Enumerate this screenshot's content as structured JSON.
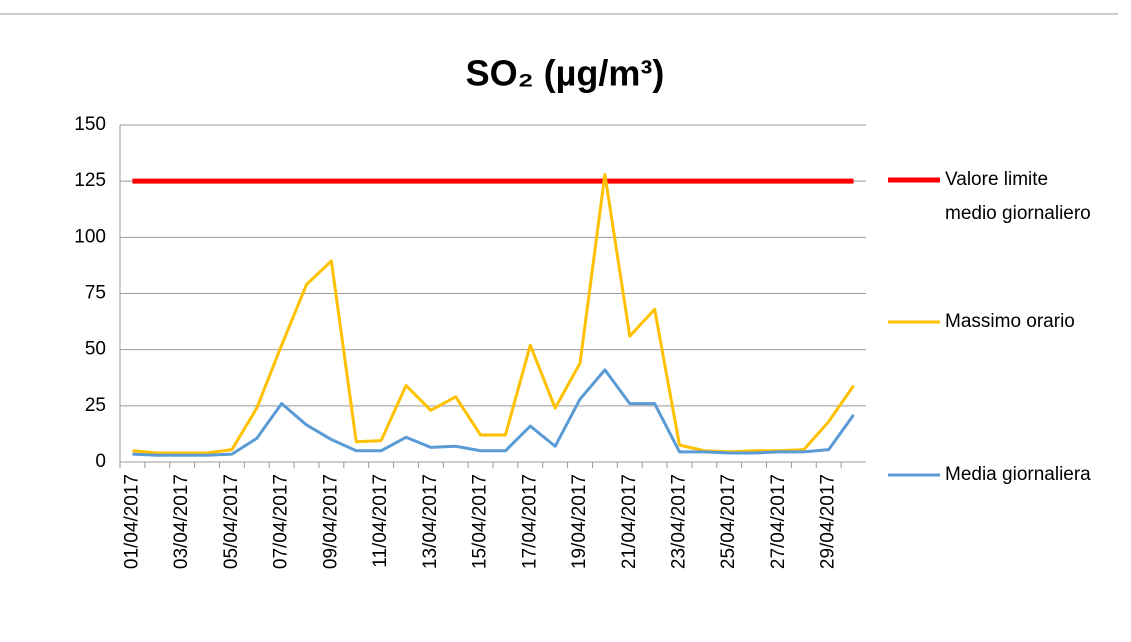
{
  "chart_data": {
    "type": "line",
    "title": "SO₂ (µg/m³)",
    "categories": [
      "01/04/2017",
      null,
      "03/04/2017",
      null,
      "05/04/2017",
      null,
      "07/04/2017",
      null,
      "09/04/2017",
      null,
      "11/04/2017",
      null,
      "13/04/2017",
      null,
      "15/04/2017",
      null,
      "17/04/2017",
      null,
      "19/04/2017",
      null,
      "21/04/2017",
      null,
      "23/04/2017",
      null,
      "25/04/2017",
      null,
      "27/04/2017",
      null,
      "29/04/2017",
      null
    ],
    "series": [
      {
        "name": "Valore limite medio giornaliero",
        "color": "#ff0000",
        "values": [
          125,
          125,
          125,
          125,
          125,
          125,
          125,
          125,
          125,
          125,
          125,
          125,
          125,
          125,
          125,
          125,
          125,
          125,
          125,
          125,
          125,
          125,
          125,
          125,
          125,
          125,
          125,
          125,
          125,
          125
        ]
      },
      {
        "name": "Massimo orario",
        "color": "#ffc000",
        "values": [
          5,
          4,
          4,
          4,
          5.5,
          24,
          52,
          79,
          89.5,
          9,
          9.5,
          34,
          23,
          29,
          12,
          12,
          52,
          24,
          44,
          128,
          56,
          68,
          7.5,
          5,
          4.5,
          5,
          5,
          5.5,
          18,
          34
        ]
      },
      {
        "name": "Media giornaliera",
        "color": "#5b9bd5",
        "values": [
          3.5,
          3,
          3,
          3,
          3.5,
          10.5,
          26,
          16.5,
          10,
          5,
          5,
          11,
          6.5,
          7,
          5,
          5,
          16,
          7,
          28,
          41,
          26,
          26,
          4.5,
          4.5,
          4,
          4,
          4.5,
          4.5,
          5.5,
          21
        ]
      }
    ],
    "ylim": [
      0,
      150
    ],
    "yticks": [
      0,
      25,
      50,
      75,
      100,
      125,
      150
    ],
    "grid": true
  }
}
